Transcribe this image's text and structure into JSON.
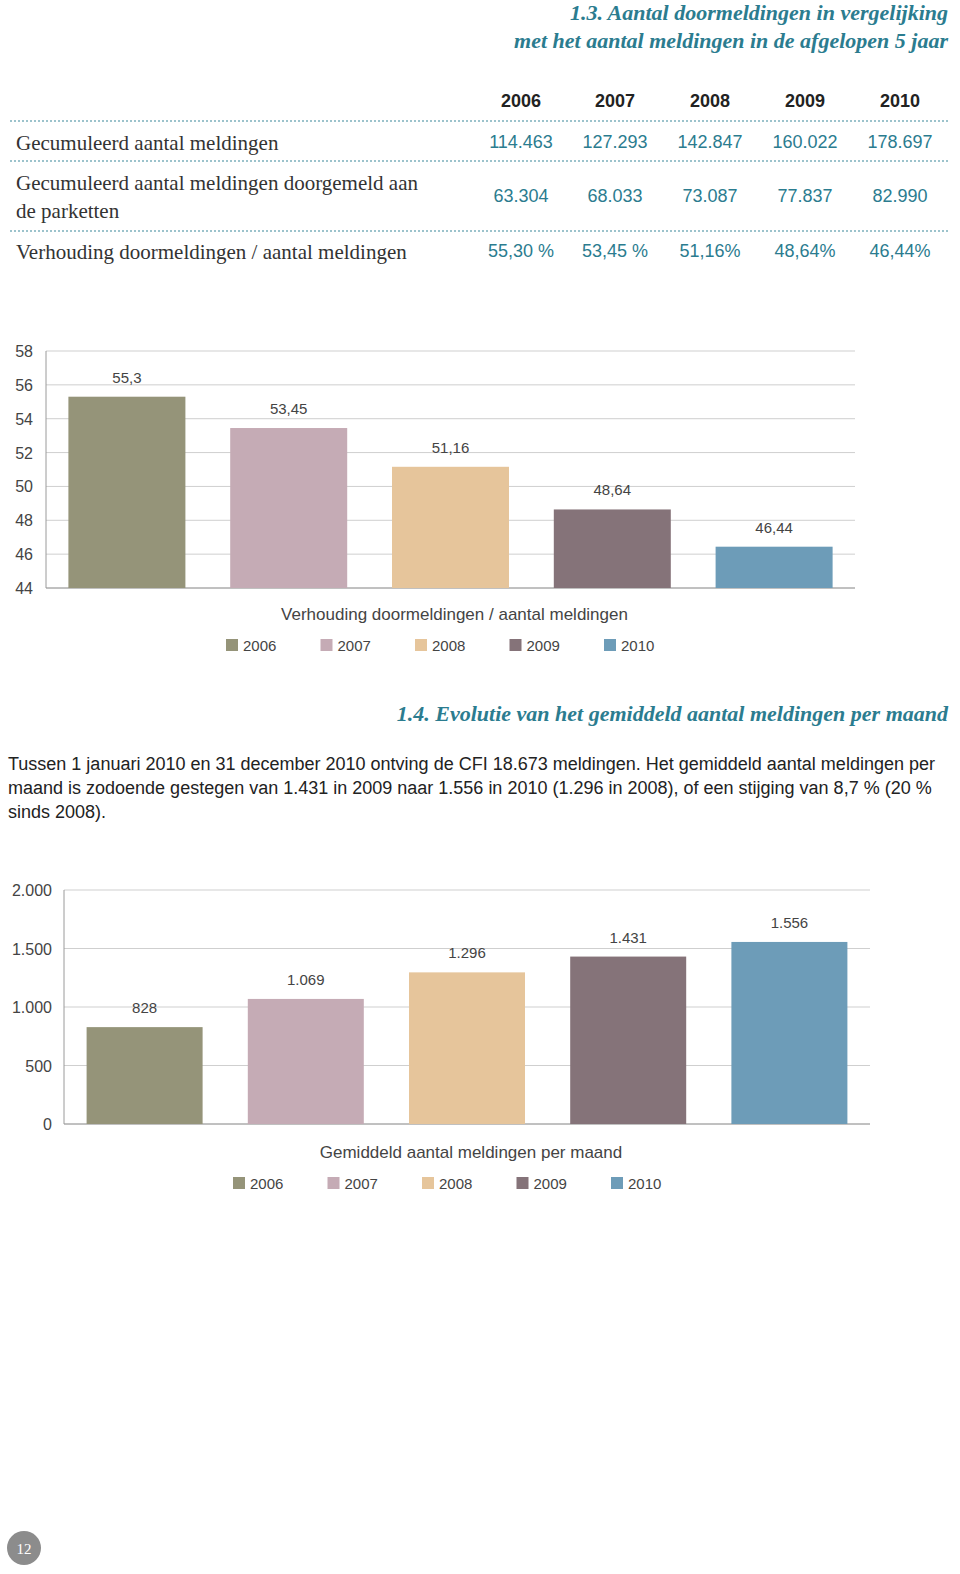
{
  "section_1_3": {
    "title": [
      "1.3. Aantal doormeldingen in vergelijking",
      "met het aantal meldingen in de afgelopen 5 jaar"
    ],
    "table": {
      "header": [
        "2006",
        "2007",
        "2008",
        "2009",
        "2010"
      ],
      "rows": [
        {
          "label": "Gecumuleerd aantal meldingen",
          "values": [
            "114.463",
            "127.293",
            "142.847",
            "160.022",
            "178.697"
          ]
        },
        {
          "label": "Gecumuleerd aantal meldingen doorgemeld aan de parketten",
          "values": [
            "63.304",
            "68.033",
            "73.087",
            "77.837",
            "82.990"
          ]
        },
        {
          "label": "Verhouding doormeldingen / aantal meldingen",
          "values": [
            "55,30 %",
            "53,45 %",
            "51,16%",
            "48,64%",
            "46,44%"
          ]
        }
      ]
    }
  },
  "section_1_4": {
    "title": "1.4. Evolutie van het gemiddeld aantal meldingen per maand",
    "text": "Tussen 1 januari 2010 en 31 december 2010 ontving de CFI 18.673 meldingen. Het gemiddeld aantal meldingen per maand is zodoende gestegen van 1.431 in 2009 naar 1.556 in 2010 (1.296 in 2008), of een stijging van 8,7 % (20 % sinds 2008)."
  },
  "chart_data": [
    {
      "type": "bar",
      "x_label": "Verhouding doormeldingen / aantal meldingen",
      "categories": [
        "2006",
        "2007",
        "2008",
        "2009",
        "2010"
      ],
      "values": [
        55.3,
        53.45,
        51.16,
        48.64,
        46.44
      ],
      "value_labels": [
        "55,3",
        "53,45",
        "51,16",
        "48,64",
        "46,44"
      ],
      "colors": [
        "#959479",
        "#c5abb5",
        "#e6c59b",
        "#857379",
        "#6d9cb8"
      ],
      "ylim": [
        44,
        58
      ],
      "yticks": [
        44,
        46,
        48,
        50,
        52,
        54,
        56,
        58
      ],
      "grid": true,
      "data_labels": true,
      "legend": "bottom"
    },
    {
      "type": "bar",
      "x_label": "Gemiddeld aantal meldingen per maand",
      "categories": [
        "2006",
        "2007",
        "2008",
        "2009",
        "2010"
      ],
      "values": [
        828,
        1069,
        1296,
        1431,
        1556
      ],
      "value_labels": [
        "828",
        "1.069",
        "1.296",
        "1.431",
        "1.556"
      ],
      "colors": [
        "#959479",
        "#c5abb5",
        "#e6c59b",
        "#857379",
        "#6d9cb8"
      ],
      "ylim": [
        0,
        2000
      ],
      "yticks": [
        0,
        500,
        {
          "value": 1000,
          "label": "1.000"
        },
        {
          "value": 1500,
          "label": "1.500"
        },
        {
          "value": 2000,
          "label": "2.000"
        }
      ],
      "grid": true,
      "data_labels": true,
      "legend": "bottom"
    }
  ],
  "page_number": "12"
}
